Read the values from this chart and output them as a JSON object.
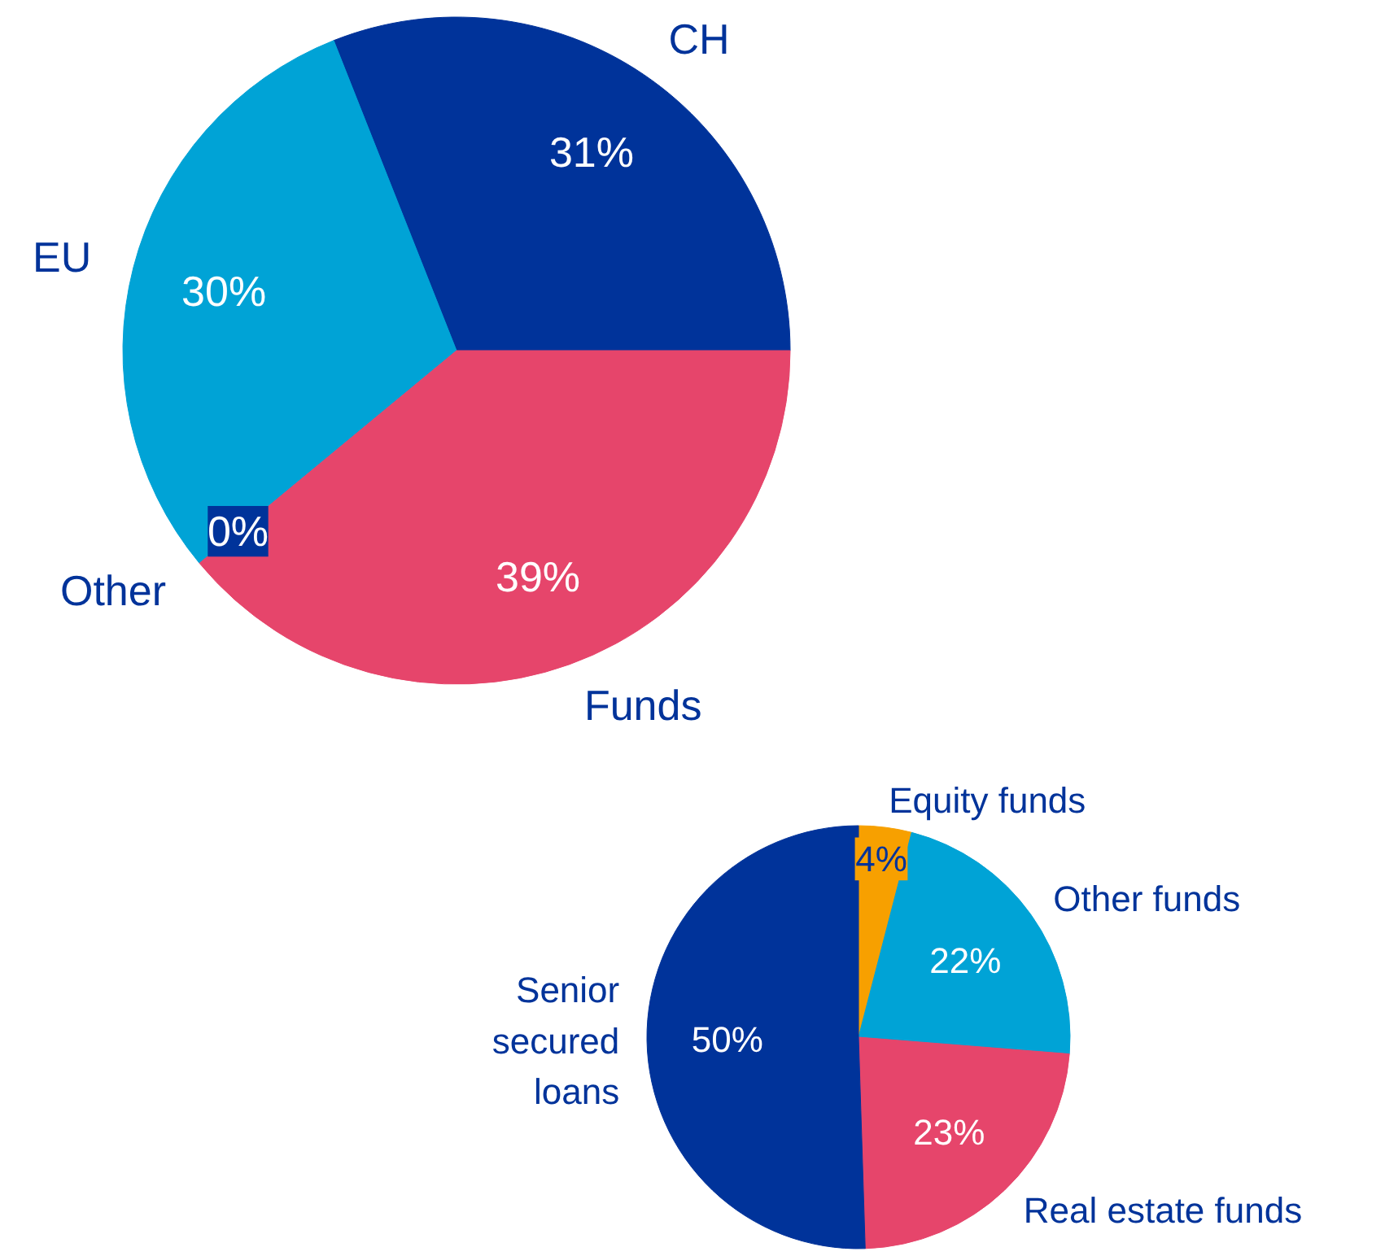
{
  "chart_data": [
    {
      "type": "pie",
      "categories": [
        "CH",
        "EU",
        "Other",
        "Funds"
      ],
      "values": [
        31,
        30,
        0,
        39
      ],
      "value_labels": [
        "31%",
        "30%",
        "0%",
        "39%"
      ],
      "colors": [
        "#00339a",
        "#00a3d6",
        "#00339a",
        "#e6456b"
      ]
    },
    {
      "type": "pie",
      "categories": [
        "Equity funds",
        "Other funds",
        "Real estate funds",
        "Senior\nsecured\nloans"
      ],
      "values": [
        4,
        22,
        23,
        50
      ],
      "value_labels": [
        "4%",
        "22%",
        "23%",
        "50%"
      ],
      "colors": [
        "#f7a000",
        "#00a3d6",
        "#e6456b",
        "#00339a"
      ]
    }
  ]
}
